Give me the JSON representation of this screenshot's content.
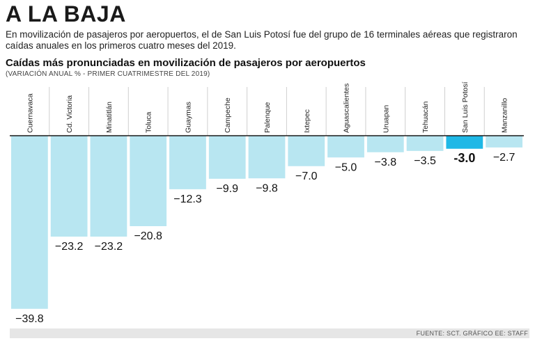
{
  "header": {
    "title": "A LA BAJA",
    "intro": "En movilización de pasajeros por aeropuertos, el de San Luis Potosí fue del grupo de 16 terminales aéreas que registraron caídas anuales en los primeros cuatro meses del 2019."
  },
  "chart_data": {
    "type": "bar",
    "title": "Caídas más pronunciadas en movilización de pasajeros por aeropuertos",
    "subtitle": "(VARIACIÓN ANUAL % - PRIMER CUATRIMESTRE DEL 2019)",
    "categories": [
      "Cuernavaca",
      "Cd. Victoria",
      "Minatitlán",
      "Toluca",
      "Guaymas",
      "Campeche",
      "Palenque",
      "Ixtepec",
      "Aguascalientes",
      "Uruapan",
      "Tehuacán",
      "San Luis Potosí",
      "Manzanillo"
    ],
    "values": [
      -39.8,
      -23.2,
      -23.2,
      -20.8,
      -12.3,
      -9.9,
      -9.8,
      -7.0,
      -5.0,
      -3.8,
      -3.5,
      -3.0,
      -2.7
    ],
    "value_labels": [
      "−39.8",
      "−23.2",
      "−23.2",
      "−20.8",
      "−12.3",
      "−9.9",
      "−9.8",
      "−7.0",
      "−5.0",
      "−3.8",
      "−3.5",
      "-3.0",
      "−2.7"
    ],
    "highlight": "San Luis Potosí",
    "ylim": [
      -40,
      0
    ],
    "colors": {
      "bar": "#b8e6f1",
      "highlight": "#1fb8e6",
      "baseline": "#1a1a1a"
    }
  },
  "footer": {
    "source": "FUENTE: SCT. GRÁFICO EE: STAFF"
  }
}
